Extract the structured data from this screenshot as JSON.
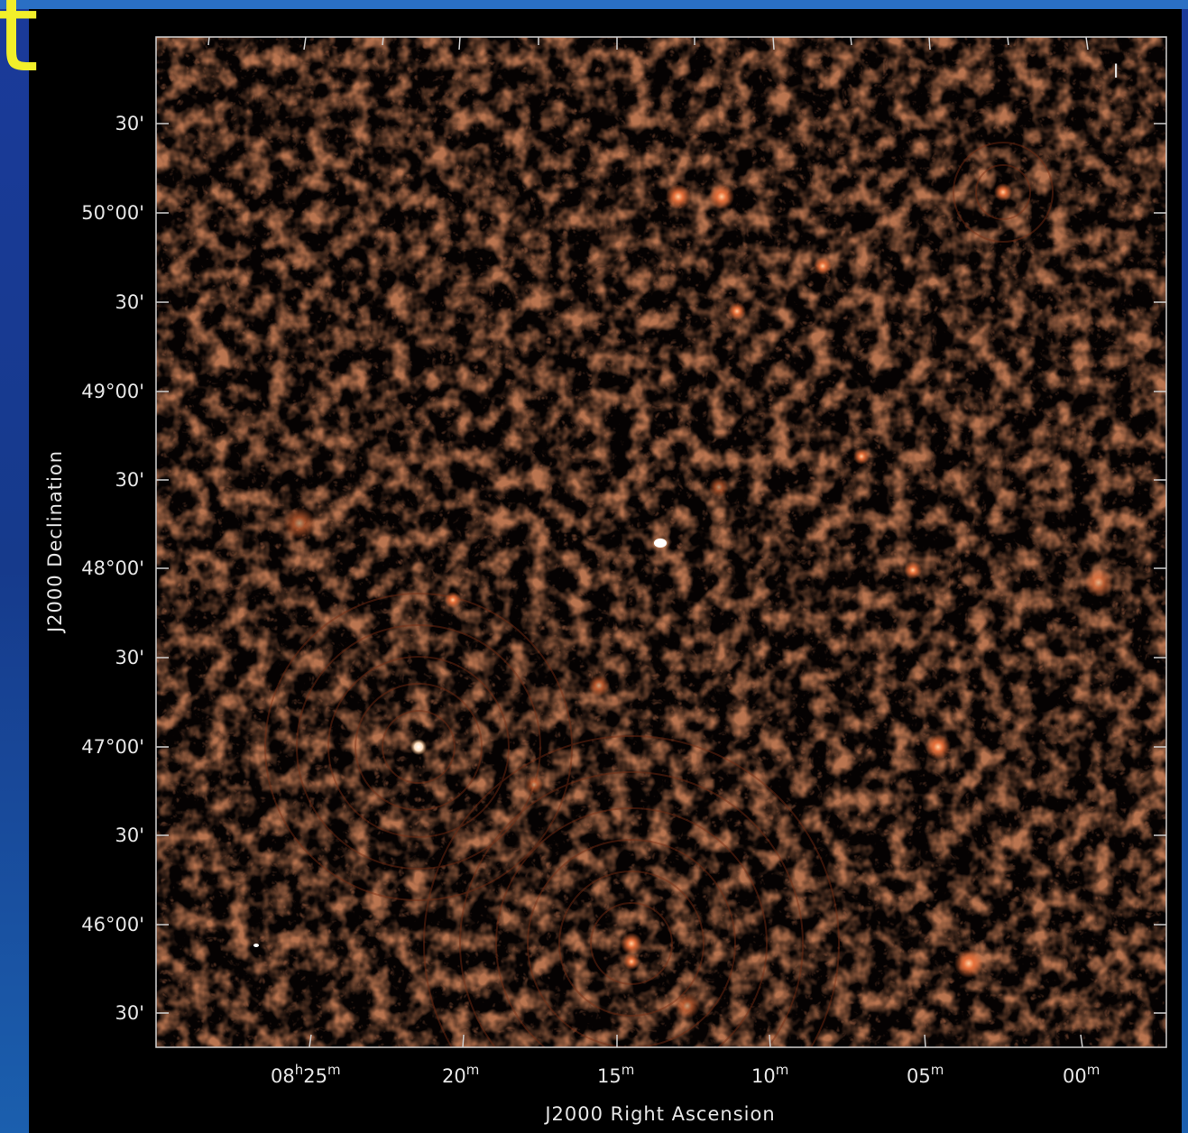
{
  "slide": {
    "title_fragment": "t",
    "colors": {
      "title": "#f2ef2a",
      "background_blue": "#1d3f9e"
    }
  },
  "image": {
    "stokes_label": "I",
    "colormap": "black-red-orange-white (radio intensity)",
    "colors": {
      "low": "#000000",
      "mid": "#8a3a1c",
      "high": "#f07a3a",
      "peak": "#ffffff"
    },
    "x_axis": {
      "title": "J2000 Right Ascension",
      "ticks": [
        {
          "main": "08",
          "sup1": "h",
          "mid": "25",
          "sup2": "m"
        },
        {
          "main": "20",
          "sup1": "",
          "mid": "",
          "sup2": "m"
        },
        {
          "main": "15",
          "sup1": "",
          "mid": "",
          "sup2": "m"
        },
        {
          "main": "10",
          "sup1": "",
          "mid": "",
          "sup2": "m"
        },
        {
          "main": "05",
          "sup1": "",
          "mid": "",
          "sup2": "m"
        },
        {
          "main": "00",
          "sup1": "",
          "mid": "",
          "sup2": "m"
        }
      ]
    },
    "y_axis": {
      "title": "J2000 Declination",
      "ticks": [
        "30'",
        "50°00'",
        "30'",
        "49°00'",
        "30'",
        "48°00'",
        "30'",
        "47°00'",
        "30'",
        "46°00'",
        "30'"
      ]
    }
  }
}
